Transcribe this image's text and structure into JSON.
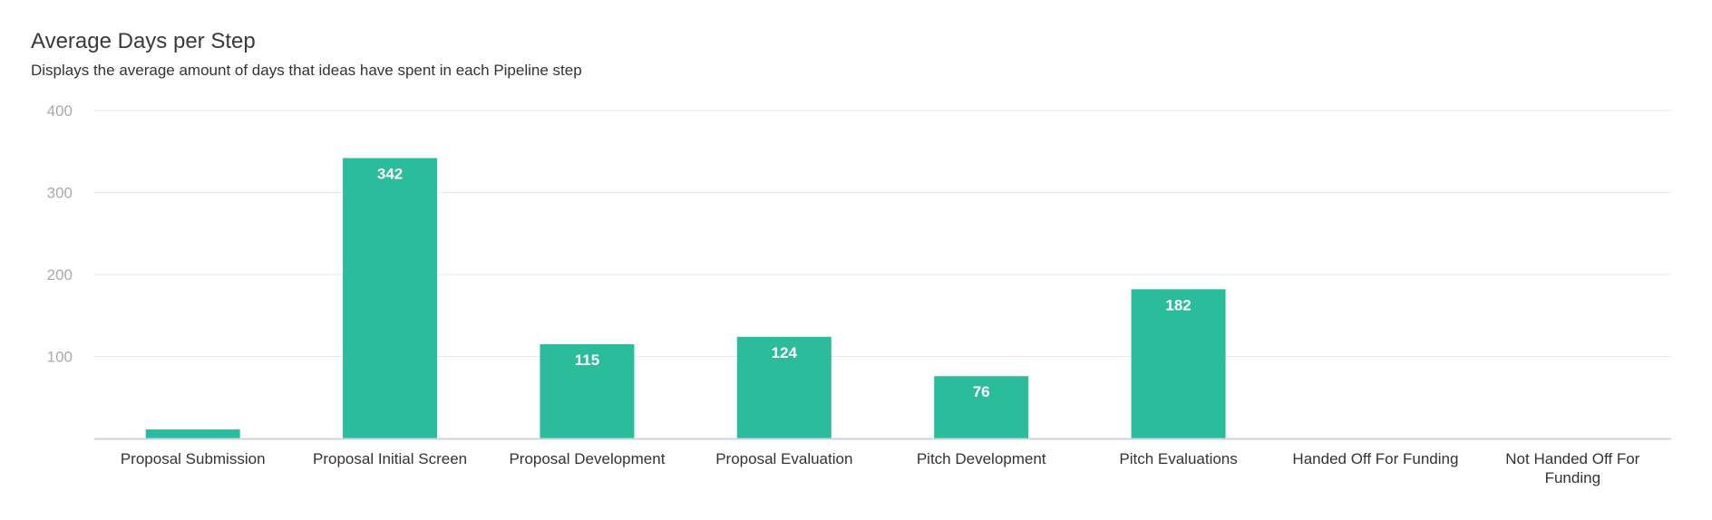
{
  "header": {
    "title": "Average Days per Step",
    "subtitle": "Displays the average amount of days that ideas have spent in each Pipeline step"
  },
  "colors": {
    "bar": "#2bbc9c",
    "grid": "#e6eaee",
    "axis": "#c8d4e0"
  },
  "chart_data": {
    "type": "bar",
    "title": "Average Days per Step",
    "subtitle": "Displays the average amount of days that ideas have spent in each Pipeline step",
    "categories": [
      "Proposal Submission",
      "Proposal Initial Screen",
      "Proposal Development",
      "Proposal Evaluation",
      "Pitch Development",
      "Pitch Evaluations",
      "Handed Off For Funding",
      "Not Handed Off For Funding"
    ],
    "values": [
      11,
      342,
      115,
      124,
      76,
      182,
      0,
      0
    ],
    "data_labels": [
      "",
      "342",
      "115",
      "124",
      "76",
      "182",
      "",
      ""
    ],
    "yticks": [
      "100",
      "200",
      "300",
      "400"
    ],
    "ylim": [
      0,
      400
    ],
    "grid": true,
    "legend": "none"
  }
}
